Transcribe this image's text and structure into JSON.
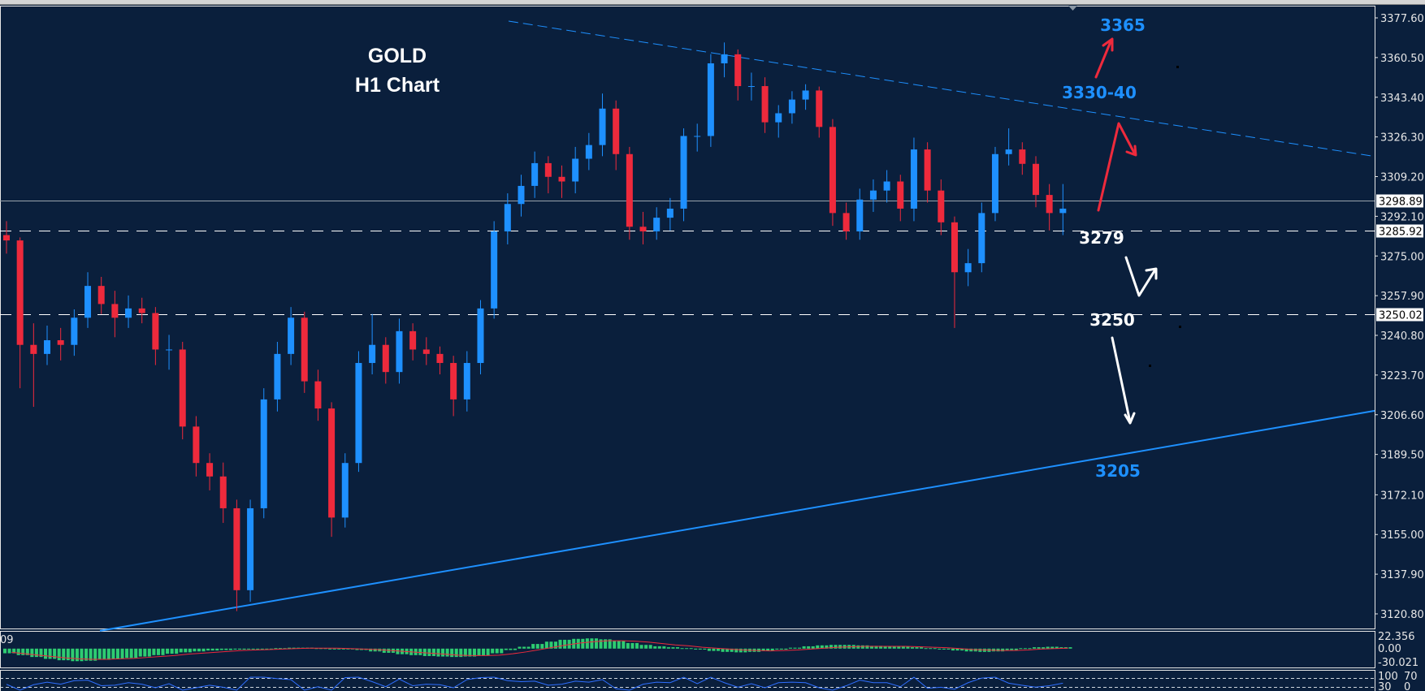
{
  "chart_data": {
    "type": "candlestick",
    "title": "GOLD",
    "subtitle": "H1 Chart",
    "ylim": [
      3120.8,
      3377.6
    ],
    "y_ticks": [
      "3377.60",
      "3360.50",
      "3343.40",
      "3326.30",
      "3309.20",
      "3292.10",
      "3275.00",
      "3257.90",
      "3240.80",
      "3223.70",
      "3206.60",
      "3189.50",
      "3172.10",
      "3155.00",
      "3137.90",
      "3120.80"
    ],
    "price_levels": [
      {
        "value": 3298.89,
        "label": "3298.89",
        "style": "solid",
        "color": "#9aa4ad"
      },
      {
        "value": 3285.92,
        "label": "3285.92",
        "style": "dashed",
        "color": "#ffffff"
      },
      {
        "value": 3250.02,
        "label": "3250.02",
        "style": "dashed",
        "color": "#ffffff"
      }
    ],
    "candles": [
      [
        3284,
        3290,
        3276,
        3281.7
      ],
      [
        3281.7,
        3283,
        3218,
        3236.7
      ],
      [
        3236.7,
        3246,
        3210,
        3232.8
      ],
      [
        3232.8,
        3245,
        3228,
        3238.7
      ],
      [
        3238.7,
        3244,
        3230,
        3236.7
      ],
      [
        3236.7,
        3252,
        3232,
        3248.4
      ],
      [
        3248.4,
        3268,
        3244,
        3262.1
      ],
      [
        3262.1,
        3266,
        3250,
        3254.3
      ],
      [
        3254.3,
        3260,
        3240,
        3248.4
      ],
      [
        3248.4,
        3258,
        3244,
        3252.4
      ],
      [
        3252.4,
        3257,
        3246,
        3250.4
      ],
      [
        3250.4,
        3253,
        3228,
        3234.7
      ],
      [
        3234.7,
        3241,
        3226,
        3234.7
      ],
      [
        3234.7,
        3238,
        3196,
        3201.5
      ],
      [
        3201.5,
        3206,
        3180,
        3185.8
      ],
      [
        3185.8,
        3190,
        3174,
        3180
      ],
      [
        3180,
        3186,
        3160,
        3166.3
      ],
      [
        3166.3,
        3170,
        3122,
        3131
      ],
      [
        3131,
        3170,
        3126,
        3166.3
      ],
      [
        3166.3,
        3218,
        3162,
        3213.2
      ],
      [
        3213.2,
        3238,
        3208,
        3232.8
      ],
      [
        3232.8,
        3253,
        3228,
        3248.4
      ],
      [
        3248.4,
        3251,
        3216,
        3221
      ],
      [
        3221,
        3226,
        3204,
        3209.3
      ],
      [
        3209.3,
        3212,
        3154,
        3162.3
      ],
      [
        3162.3,
        3190,
        3158,
        3185.8
      ],
      [
        3185.8,
        3234,
        3182,
        3228.9
      ],
      [
        3228.9,
        3250,
        3224,
        3236.7
      ],
      [
        3236.7,
        3240,
        3220,
        3225
      ],
      [
        3225,
        3248,
        3220,
        3242.6
      ],
      [
        3242.6,
        3246,
        3230,
        3234.7
      ],
      [
        3234.7,
        3240,
        3228,
        3232.8
      ],
      [
        3232.8,
        3236,
        3224,
        3228.9
      ],
      [
        3228.9,
        3232,
        3206,
        3213.2
      ],
      [
        3213.2,
        3234,
        3208,
        3228.9
      ],
      [
        3228.9,
        3256,
        3224,
        3252.4
      ],
      [
        3252.4,
        3290,
        3248,
        3285.6
      ],
      [
        3285.6,
        3302,
        3280,
        3297.4
      ],
      [
        3297.4,
        3310,
        3292,
        3305.2
      ],
      [
        3305.2,
        3320,
        3300,
        3315
      ],
      [
        3315,
        3318,
        3302,
        3309.1
      ],
      [
        3309.1,
        3314,
        3300,
        3307.1
      ],
      [
        3307.1,
        3322,
        3302,
        3316.9
      ],
      [
        3316.9,
        3328,
        3312,
        3322.8
      ],
      [
        3322.8,
        3345,
        3318,
        3338.5
      ],
      [
        3338.5,
        3342,
        3312,
        3318.9
      ],
      [
        3318.9,
        3322,
        3282,
        3287.6
      ],
      [
        3287.6,
        3294,
        3280,
        3285.6
      ],
      [
        3285.6,
        3296,
        3282,
        3291.5
      ],
      [
        3291.5,
        3300,
        3286,
        3295.4
      ],
      [
        3295.4,
        3330,
        3290,
        3326.7
      ],
      [
        3326.7,
        3332,
        3320,
        3326.7
      ],
      [
        3326.7,
        3362,
        3322,
        3358
      ],
      [
        3358,
        3367,
        3352,
        3361.9
      ],
      [
        3361.9,
        3364,
        3342,
        3348.2
      ],
      [
        3348.2,
        3354,
        3342,
        3348.2
      ],
      [
        3348.2,
        3352,
        3328,
        3332.6
      ],
      [
        3332.6,
        3340,
        3326,
        3336.5
      ],
      [
        3336.5,
        3346,
        3332,
        3342.4
      ],
      [
        3342.4,
        3349,
        3338,
        3346.3
      ],
      [
        3346.3,
        3348,
        3326,
        3330.6
      ],
      [
        3330.6,
        3334,
        3288,
        3293.5
      ],
      [
        3293.5,
        3298,
        3282,
        3285.6
      ],
      [
        3285.6,
        3304,
        3282,
        3299.3
      ],
      [
        3299.3,
        3308,
        3294,
        3303.2
      ],
      [
        3303.2,
        3312,
        3298,
        3307.1
      ],
      [
        3307.1,
        3310,
        3290,
        3295.4
      ],
      [
        3295.4,
        3326,
        3290,
        3320.9
      ],
      [
        3320.9,
        3324,
        3298,
        3303.2
      ],
      [
        3303.2,
        3308,
        3284,
        3289.5
      ],
      [
        3289.5,
        3292,
        3244,
        3268
      ],
      [
        3268,
        3278,
        3262,
        3271.9
      ],
      [
        3271.9,
        3298,
        3268,
        3293.5
      ],
      [
        3293.5,
        3322,
        3290,
        3318.9
      ],
      [
        3318.9,
        3330,
        3314,
        3320.9
      ],
      [
        3320.9,
        3324,
        3310,
        3314.7
      ],
      [
        3314.7,
        3318,
        3296,
        3301.3
      ],
      [
        3301.3,
        3306,
        3286,
        3293.5
      ],
      [
        3293.5,
        3306,
        3284,
        3295.4
      ]
    ],
    "trendlines": [
      {
        "style": "dashed",
        "color": "#1e90ff",
        "from_price": 3384.6,
        "to_price": 3317.9
      },
      {
        "style": "solid",
        "color": "#1e90ff",
        "from_price": 3113.5,
        "to_price": 3208.3
      }
    ],
    "annotations": [
      {
        "text": "3365",
        "color": "#1e90ff"
      },
      {
        "text": "3330-40",
        "color": "#1e90ff"
      },
      {
        "text": "3279",
        "color": "#ffffff"
      },
      {
        "text": "3250",
        "color": "#ffffff"
      },
      {
        "text": "3205",
        "color": "#1e90ff"
      }
    ],
    "colors": {
      "background": "#0a1f3c",
      "bull": "#1e90ff",
      "bear": "#ee2a3c",
      "grid_text": "#e6e6e6"
    }
  },
  "macd": {
    "left_label": "09",
    "ticks": [
      "22.356",
      "0.00",
      "-30.021"
    ],
    "ylim": [
      -30.021,
      22.356
    ],
    "histogram": [
      -10,
      -14,
      -18,
      -22,
      -25,
      -27,
      -26,
      -24,
      -22,
      -20,
      -17,
      -14,
      -11,
      -8,
      -6,
      -4,
      -3,
      -2,
      -1,
      0,
      1,
      2,
      2,
      1,
      0,
      -1,
      -3,
      -6,
      -9,
      -12,
      -14,
      -16,
      -17,
      -18,
      -17,
      -15,
      -10,
      -3,
      4,
      10,
      15,
      19,
      21,
      22,
      20,
      17,
      12,
      8,
      5,
      3,
      1,
      -2,
      -5,
      -7,
      -8,
      -7,
      -5,
      -2,
      2,
      5,
      7,
      8,
      8,
      7,
      6,
      5,
      4,
      3,
      1,
      -2,
      -4,
      -6,
      -7,
      -6,
      -3,
      1,
      3,
      4,
      3
    ],
    "signal": [
      -8,
      -11,
      -14,
      -17,
      -20,
      -22,
      -23,
      -23,
      -22,
      -21,
      -19,
      -17,
      -15,
      -12,
      -10,
      -8,
      -6,
      -4,
      -3,
      -2,
      -1,
      0,
      1,
      1,
      1,
      0,
      -1,
      -2,
      -4,
      -6,
      -8,
      -10,
      -12,
      -14,
      -15,
      -15,
      -14,
      -11,
      -7,
      -2,
      3,
      8,
      12,
      15,
      17,
      17,
      16,
      14,
      11,
      8,
      6,
      3,
      1,
      -1,
      -3,
      -4,
      -5,
      -4,
      -3,
      -1,
      1,
      3,
      4,
      5,
      5,
      5,
      5,
      4,
      3,
      2,
      0,
      -2,
      -3,
      -4,
      -4,
      -3,
      -1,
      0,
      1
    ],
    "colors": {
      "histogram": "#2ecc71",
      "signal": "#ee2a3c"
    }
  },
  "oscillator": {
    "top_labels": [
      "100",
      "70"
    ],
    "bottom_labels": [
      "30",
      "0"
    ],
    "color": "#2f6fff"
  }
}
